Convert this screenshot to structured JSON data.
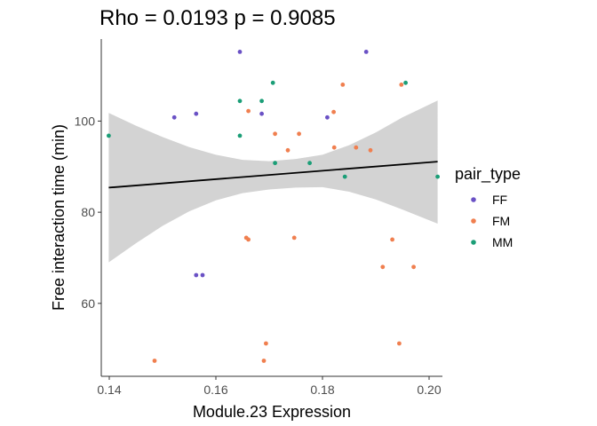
{
  "chart_data": {
    "type": "scatter",
    "title": "Rho = 0.0193 p = 0.9085",
    "xlabel": "Module.23 Expression",
    "ylabel": "Free interaction time (min)",
    "xlim": [
      0.1385,
      0.2025
    ],
    "ylim": [
      44,
      118
    ],
    "x_ticks": [
      0.14,
      0.16,
      0.18,
      0.2
    ],
    "x_tick_labels": [
      "0.14",
      "0.16",
      "0.18",
      "0.20"
    ],
    "y_ticks": [
      60,
      80,
      100
    ],
    "y_tick_labels": [
      "60",
      "80",
      "100"
    ],
    "grid": false,
    "legend": {
      "title": "pair_type",
      "position": "right",
      "entries": [
        {
          "label": "FF",
          "color": "#6a51c5"
        },
        {
          "label": "FM",
          "color": "#f07f4f"
        },
        {
          "label": "MM",
          "color": "#1b9e77"
        }
      ]
    },
    "series": [
      {
        "name": "FF",
        "color": "#6a51c5",
        "points": [
          {
            "x": 0.1645,
            "y": 115.2
          },
          {
            "x": 0.1882,
            "y": 115.2
          },
          {
            "x": 0.1522,
            "y": 100.8
          },
          {
            "x": 0.1563,
            "y": 101.6
          },
          {
            "x": 0.1686,
            "y": 101.6
          },
          {
            "x": 0.1809,
            "y": 100.8
          },
          {
            "x": 0.1563,
            "y": 66.2
          },
          {
            "x": 0.1575,
            "y": 66.2
          }
        ]
      },
      {
        "name": "FM",
        "color": "#f07f4f",
        "points": [
          {
            "x": 0.1838,
            "y": 108.0
          },
          {
            "x": 0.1948,
            "y": 108.0
          },
          {
            "x": 0.1661,
            "y": 102.2
          },
          {
            "x": 0.1821,
            "y": 102.0
          },
          {
            "x": 0.1711,
            "y": 97.2
          },
          {
            "x": 0.1756,
            "y": 97.2
          },
          {
            "x": 0.1822,
            "y": 94.2
          },
          {
            "x": 0.1863,
            "y": 94.2
          },
          {
            "x": 0.189,
            "y": 93.6
          },
          {
            "x": 0.1735,
            "y": 93.6
          },
          {
            "x": 0.1657,
            "y": 74.4
          },
          {
            "x": 0.1661,
            "y": 74.0
          },
          {
            "x": 0.1747,
            "y": 74.4
          },
          {
            "x": 0.1931,
            "y": 74.0
          },
          {
            "x": 0.1913,
            "y": 68.0
          },
          {
            "x": 0.1971,
            "y": 68.0
          },
          {
            "x": 0.1694,
            "y": 51.2
          },
          {
            "x": 0.1944,
            "y": 51.2
          },
          {
            "x": 0.1485,
            "y": 47.4
          },
          {
            "x": 0.169,
            "y": 47.4
          }
        ]
      },
      {
        "name": "MM",
        "color": "#1b9e77",
        "points": [
          {
            "x": 0.1707,
            "y": 108.4
          },
          {
            "x": 0.1956,
            "y": 108.4
          },
          {
            "x": 0.1645,
            "y": 104.4
          },
          {
            "x": 0.1686,
            "y": 104.4
          },
          {
            "x": 0.1399,
            "y": 96.8
          },
          {
            "x": 0.1645,
            "y": 96.8
          },
          {
            "x": 0.1711,
            "y": 90.8
          },
          {
            "x": 0.1776,
            "y": 90.8
          },
          {
            "x": 0.1842,
            "y": 87.8
          },
          {
            "x": 0.2016,
            "y": 87.8
          }
        ]
      }
    ],
    "regression": {
      "color": "#000000",
      "ribbon_color": "#d3d3d3",
      "line": [
        {
          "x": 0.1399,
          "y": 85.4
        },
        {
          "x": 0.2016,
          "y": 91.1
        }
      ],
      "band": [
        {
          "x": 0.1399,
          "lower": 69.0,
          "upper": 101.8
        },
        {
          "x": 0.145,
          "lower": 73.2,
          "upper": 99.0
        },
        {
          "x": 0.15,
          "lower": 77.0,
          "upper": 96.5
        },
        {
          "x": 0.155,
          "lower": 80.2,
          "upper": 94.3
        },
        {
          "x": 0.16,
          "lower": 82.6,
          "upper": 92.6
        },
        {
          "x": 0.165,
          "lower": 84.2,
          "upper": 91.5
        },
        {
          "x": 0.17,
          "lower": 85.0,
          "upper": 91.2
        },
        {
          "x": 0.175,
          "lower": 85.4,
          "upper": 91.7
        },
        {
          "x": 0.18,
          "lower": 85.5,
          "upper": 92.6
        },
        {
          "x": 0.185,
          "lower": 84.5,
          "upper": 94.7
        },
        {
          "x": 0.19,
          "lower": 82.8,
          "upper": 97.5
        },
        {
          "x": 0.195,
          "lower": 80.6,
          "upper": 100.8
        },
        {
          "x": 0.2016,
          "lower": 77.5,
          "upper": 104.5
        }
      ]
    }
  }
}
